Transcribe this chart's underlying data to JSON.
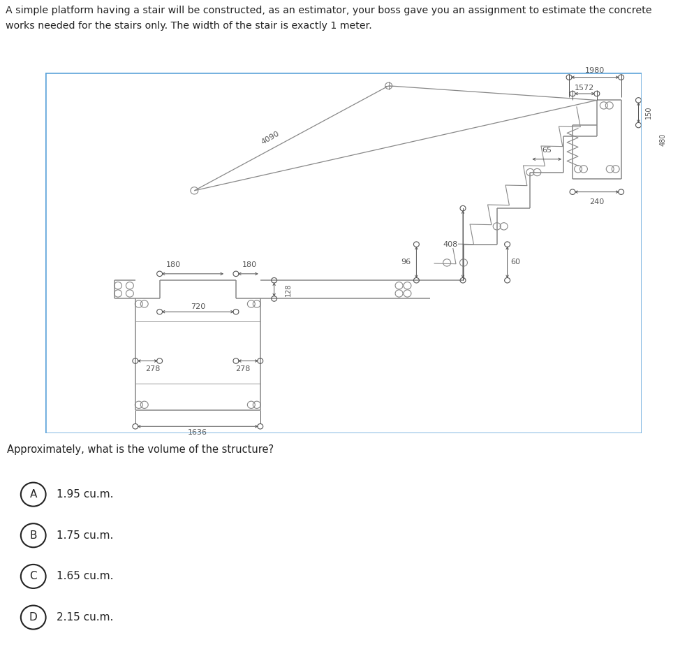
{
  "title_text": "A simple platform having a stair will be constructed, as an estimator, your boss gave you an assignment to estimate the concrete\nworks needed for the stairs only. The width of the stair is exactly 1 meter.",
  "question_text": "Approximately, what is the volume of the structure?",
  "options": [
    {
      "label": "A",
      "text": "1.95 cu.m."
    },
    {
      "label": "B",
      "text": "1.75 cu.m."
    },
    {
      "label": "C",
      "text": "1.65 cu.m."
    },
    {
      "label": "D",
      "text": "2.15 cu.m."
    }
  ],
  "bg_color": "#ffffff",
  "drawing_bg": "#ffffff",
  "border_color": "#5ba3d9",
  "line_color": "#888888",
  "dim_color": "#555555",
  "option_bg": "#f2f2f2",
  "text_color": "#222222",
  "btn_bg": "#3a3a3a"
}
